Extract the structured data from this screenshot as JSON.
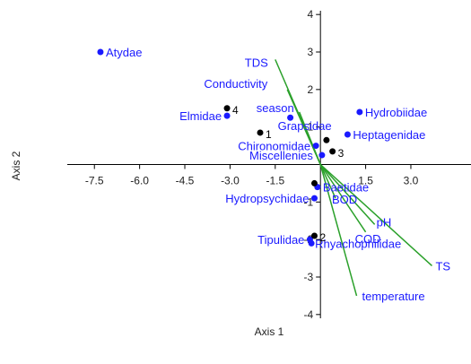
{
  "chart_data": {
    "type": "scatter",
    "xlabel": "Axis 1",
    "ylabel": "Axis 2",
    "xlim": [
      -8.4,
      4.4
    ],
    "ylim": [
      -4.1,
      4.1
    ],
    "xticks": [
      "-7.5",
      "-6.0",
      "-4.5",
      "-3.0",
      "-1.5",
      "1.5",
      "3.0"
    ],
    "xtick_values": [
      -7.5,
      -6.0,
      -4.5,
      -3.0,
      -1.5,
      1.5,
      3.0
    ],
    "yticks": [
      "4",
      "3",
      "2",
      "1",
      "-1",
      "-2",
      "-3",
      "-4"
    ],
    "ytick_values": [
      4,
      3,
      2,
      1,
      -1,
      -2,
      -3,
      -4
    ],
    "grid": false,
    "colors": {
      "taxa": "#1a1aff",
      "sites": "#000000",
      "vectors": "#2aa02a",
      "axes": "#000000"
    },
    "taxa": [
      {
        "label": "Atydae",
        "x": -7.3,
        "y": 3.0
      },
      {
        "label": "Elmidae",
        "x": -3.1,
        "y": 1.3
      },
      {
        "label": "Grapsidae",
        "x": -1.0,
        "y": 1.25
      },
      {
        "label": "Hydrobiidae",
        "x": 1.3,
        "y": 1.4
      },
      {
        "label": "Heptagenidae",
        "x": 0.9,
        "y": 0.8
      },
      {
        "label": "Chironomidae",
        "x": -0.15,
        "y": 0.5
      },
      {
        "label": "Miscellenies",
        "x": 0.05,
        "y": 0.25
      },
      {
        "label": "Baetidae",
        "x": -0.1,
        "y": -0.6
      },
      {
        "label": "Hydropsychidae",
        "x": -0.2,
        "y": -0.9
      },
      {
        "label": "Tipulidae",
        "x": -0.35,
        "y": -2.0
      },
      {
        "label": "Rhyachophilidae",
        "x": -0.3,
        "y": -2.1
      }
    ],
    "sites": [
      {
        "label": "4",
        "x": -3.1,
        "y": 1.5
      },
      {
        "label": "1",
        "x": -2.0,
        "y": 0.85
      },
      {
        "label": "3",
        "x": 0.4,
        "y": 0.35
      },
      {
        "label": "",
        "x": 0.2,
        "y": 0.65
      },
      {
        "label": "",
        "x": -0.2,
        "y": -0.5
      },
      {
        "label": "2",
        "x": -0.2,
        "y": -1.9
      }
    ],
    "vectors": [
      {
        "label": "TDS",
        "x": -1.5,
        "y": 2.8
      },
      {
        "label": "Conductivity",
        "x": -1.1,
        "y": 2.0
      },
      {
        "label": "season",
        "x": -0.7,
        "y": 1.4
      },
      {
        "label": "BOD",
        "x": 0.5,
        "y": -0.9
      },
      {
        "label": "pH",
        "x": 1.8,
        "y": -1.6
      },
      {
        "label": "COD",
        "x": 1.5,
        "y": -1.8
      },
      {
        "label": "TS",
        "x": 3.7,
        "y": -2.7
      },
      {
        "label": "temperature",
        "x": 1.2,
        "y": -3.5
      }
    ]
  }
}
